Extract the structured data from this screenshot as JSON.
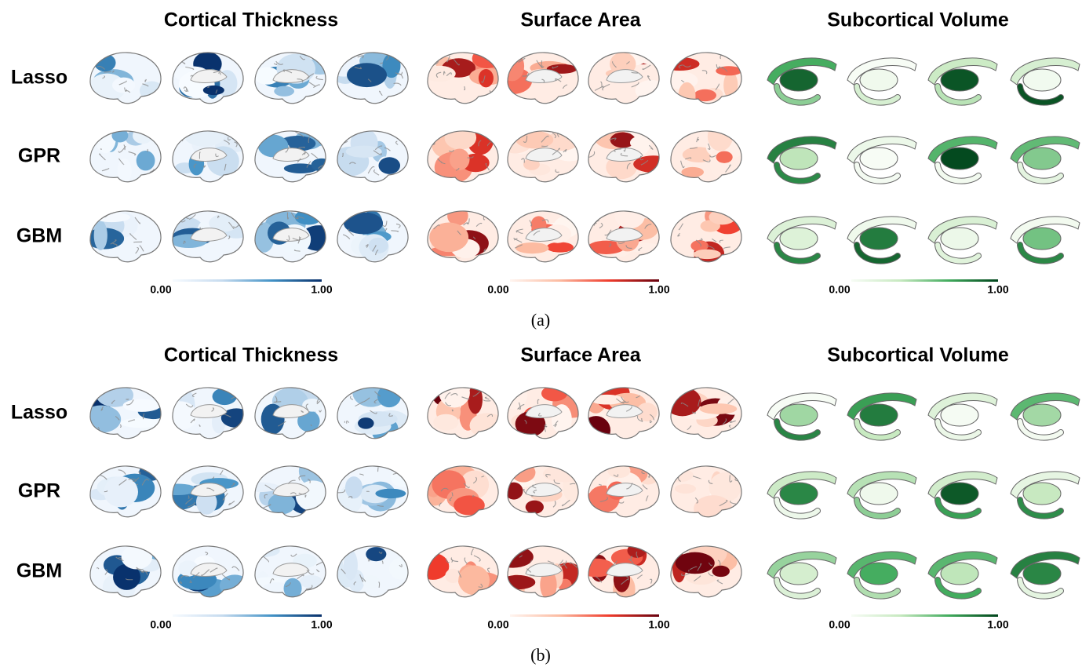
{
  "panels": [
    {
      "label": "(a)",
      "columns": [
        {
          "title": "Cortical Thickness",
          "colorbar": {
            "min_label": "0.00",
            "max_label": "1.00"
          }
        },
        {
          "title": "Surface Area",
          "colorbar": {
            "min_label": "0.00",
            "max_label": "1.00"
          }
        },
        {
          "title": "Subcortical Volume",
          "colorbar": {
            "min_label": "0.00",
            "max_label": "1.00"
          }
        }
      ],
      "rows": [
        "Lasso",
        "GPR",
        "GBM"
      ]
    },
    {
      "label": "(b)",
      "columns": [
        {
          "title": "Cortical Thickness",
          "colorbar": {
            "min_label": "0.00",
            "max_label": "1.00"
          }
        },
        {
          "title": "Surface Area",
          "colorbar": {
            "min_label": "0.00",
            "max_label": "1.00"
          }
        },
        {
          "title": "Subcortical Volume",
          "colorbar": {
            "min_label": "0.00",
            "max_label": "1.00"
          }
        }
      ],
      "rows": [
        "Lasso",
        "GPR",
        "GBM"
      ]
    }
  ]
}
